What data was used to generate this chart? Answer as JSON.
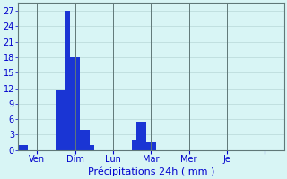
{
  "bar_values": [
    1,
    1,
    0,
    0,
    0,
    0,
    0,
    0,
    11.5,
    11.5,
    27,
    18,
    18,
    4,
    4,
    1,
    0,
    0,
    0,
    0,
    0,
    0,
    0,
    0,
    2,
    5.5,
    5.5,
    1.5,
    1.5,
    0,
    0,
    0,
    0,
    0,
    0,
    0,
    0,
    0,
    0,
    0,
    0,
    0,
    0,
    0,
    0,
    0,
    0,
    0,
    0,
    0,
    0,
    0,
    0,
    0,
    0,
    0
  ],
  "n_bars": 56,
  "day_tick_positions": [
    8,
    24,
    40,
    56,
    72,
    88,
    104
  ],
  "day_labels": [
    "Ven",
    "Dim",
    "Lun",
    "Mar",
    "Mer",
    "Je",
    ""
  ],
  "yticks": [
    0,
    3,
    6,
    9,
    12,
    15,
    18,
    21,
    24,
    27
  ],
  "ylim": [
    0,
    28.5
  ],
  "xlim": [
    0,
    112
  ],
  "bar_color": "#1a35d4",
  "background_color": "#d8f5f5",
  "grid_color": "#b8d8d8",
  "xlabel": "Précipitations 24h ( mm )",
  "xlabel_color": "#0000cc",
  "tick_color": "#0000cc",
  "bar_width": 2.0,
  "spine_color": "#607878"
}
